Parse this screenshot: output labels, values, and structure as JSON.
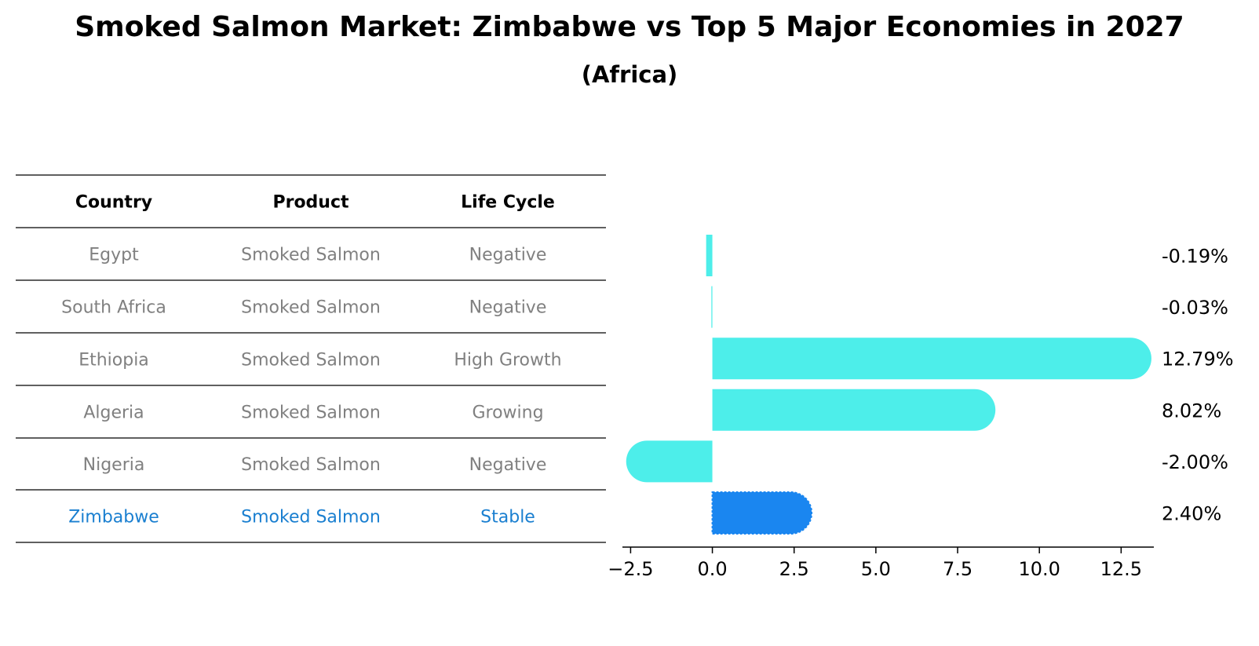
{
  "title": "Smoked Salmon Market: Zimbabwe vs Top 5 Major Economies in 2027",
  "subtitle": "(Africa)",
  "table": {
    "headers": [
      "Country",
      "Product",
      "Life Cycle"
    ],
    "rows": [
      {
        "country": "Egypt",
        "product": "Smoked Salmon",
        "life_cycle": "Negative",
        "highlight": false
      },
      {
        "country": "South Africa",
        "product": "Smoked Salmon",
        "life_cycle": "Negative",
        "highlight": false
      },
      {
        "country": "Ethiopia",
        "product": "Smoked Salmon",
        "life_cycle": "High Growth",
        "highlight": false
      },
      {
        "country": "Algeria",
        "product": "Smoked Salmon",
        "life_cycle": "Growing",
        "highlight": false
      },
      {
        "country": "Nigeria",
        "product": "Smoked Salmon",
        "life_cycle": "Negative",
        "highlight": false
      },
      {
        "country": "Zimbabwe",
        "product": "Smoked Salmon",
        "life_cycle": "Stable",
        "highlight": true
      }
    ]
  },
  "chart_data": {
    "type": "bar",
    "orientation": "horizontal",
    "title": "Smoked Salmon Market: Zimbabwe vs Top 5 Major Economies in 2027",
    "subtitle": "(Africa)",
    "categories": [
      "Egypt",
      "South Africa",
      "Ethiopia",
      "Algeria",
      "Nigeria",
      "Zimbabwe"
    ],
    "values": [
      -0.19,
      -0.03,
      12.79,
      8.02,
      -2.0,
      2.4
    ],
    "labels": [
      "-0.19%",
      "-0.03%",
      "12.79%",
      "8.02%",
      "-2.00%",
      "2.40%"
    ],
    "highlight": [
      false,
      false,
      false,
      false,
      false,
      true
    ],
    "xlim": [
      -2.75,
      13.5
    ],
    "xticks": [
      -2.5,
      0.0,
      2.5,
      5.0,
      7.5,
      10.0,
      12.5
    ],
    "xtick_labels": [
      "−2.5",
      "0.0",
      "2.5",
      "5.0",
      "7.5",
      "10.0",
      "12.5"
    ],
    "xlabel": "",
    "ylabel": "",
    "grid": false
  },
  "colors": {
    "bar": "#4deeea",
    "highlight_bar": "#1a86f0",
    "table_text": "#808080",
    "table_highlight_text": "#1a7fd0",
    "header_text": "#000000",
    "rule": "#000000",
    "axis": "#000000"
  }
}
